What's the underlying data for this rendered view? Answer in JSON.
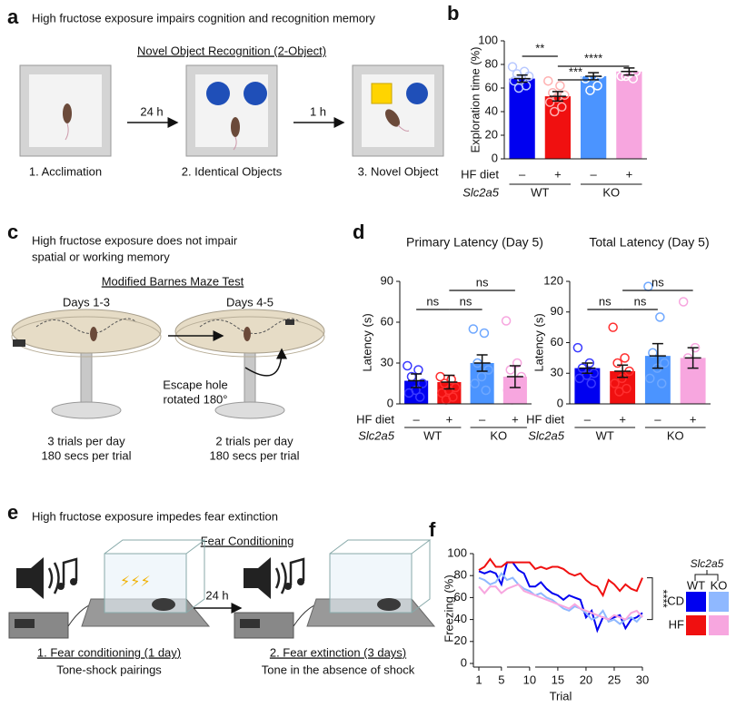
{
  "panels": {
    "a": {
      "letter": "a",
      "title": "High fructose exposure impairs cognition and recognition memory",
      "test": "Novel Object Recognition (2-Object)",
      "intervals": [
        "24 h",
        "1 h"
      ],
      "steps": [
        "1. Acclimation",
        "2. Identical Objects",
        "3. Novel Object"
      ]
    },
    "b": {
      "letter": "b"
    },
    "c": {
      "letter": "c",
      "title": [
        "High fructose exposure does not impair",
        "spatial or working memory"
      ],
      "test": "Modified Barnes Maze Test",
      "days": [
        "Days 1-3",
        "Days 4-5"
      ],
      "rotation": [
        "Escape hole",
        "rotated 180°"
      ],
      "protocol": [
        [
          "3 trials per day",
          "180 secs per trial"
        ],
        [
          "2 trials per day",
          "180 secs per trial"
        ]
      ]
    },
    "d": {
      "letter": "d"
    },
    "e": {
      "letter": "e",
      "title": "High fructose exposure impedes fear extinction",
      "test": "Fear Conditioning",
      "interval": "24 h",
      "steps": [
        [
          "1. Fear conditioning (1 day)",
          "Tone-shock pairings"
        ],
        [
          "2. Fear extinction (3 days)",
          "Tone in the absence of shock"
        ]
      ]
    },
    "f": {
      "letter": "f"
    }
  },
  "chart_data": [
    {
      "type": "bar",
      "ylabel": "Exploration time (%)",
      "row_label": "HF diet",
      "group_label": "Slc2a5",
      "groups": [
        "WT",
        "KO"
      ],
      "categories": [
        "–",
        "+",
        "–",
        "+"
      ],
      "values": [
        68,
        53,
        70,
        74
      ],
      "errors": [
        3,
        4,
        3,
        3
      ],
      "points": [
        [
          78,
          74,
          72,
          70,
          68,
          66,
          62,
          60
        ],
        [
          66,
          62,
          56,
          54,
          52,
          48,
          44,
          40
        ],
        [
          80,
          78,
          74,
          72,
          70,
          68,
          62,
          58
        ],
        [
          84,
          80,
          76,
          74,
          72,
          70,
          68,
          70
        ]
      ],
      "colors": [
        "#0000f0",
        "#f01010",
        "#4b94ff",
        "#f7a6df"
      ],
      "point_colors": [
        "#b8c8ff",
        "#ffb0b0",
        "#ffffff",
        "#ffffff"
      ],
      "ylim": [
        0,
        100
      ],
      "yticks": [
        0,
        20,
        40,
        60,
        80,
        100
      ],
      "annotations": [
        "**",
        "***",
        "****"
      ]
    },
    {
      "type": "bar",
      "title": "Primary Latency (Day 5)",
      "ylabel": "Latency (s)",
      "row_label": "HF diet",
      "group_label": "Slc2a5",
      "groups": [
        "WT",
        "KO"
      ],
      "categories": [
        "–",
        "+",
        "–",
        "+"
      ],
      "values": [
        17,
        16,
        30,
        20
      ],
      "errors": [
        5,
        5,
        6,
        8
      ],
      "points": [
        [
          28,
          25,
          20,
          15,
          10,
          8,
          5
        ],
        [
          20,
          18,
          15,
          12,
          10,
          8,
          5,
          3
        ],
        [
          55,
          52,
          30,
          25,
          20,
          15,
          10
        ],
        [
          61,
          30,
          25,
          20,
          15,
          10,
          5,
          3
        ]
      ],
      "colors": [
        "#0000f0",
        "#f01010",
        "#4b94ff",
        "#f7a6df"
      ],
      "point_colors": [
        "#3a3aff",
        "#ff3030",
        "#6fa8ff",
        "#f7a6df"
      ],
      "ylim": [
        0,
        90
      ],
      "yticks": [
        0,
        30,
        60,
        90
      ],
      "annotations": [
        "ns",
        "ns",
        "ns"
      ]
    },
    {
      "type": "bar",
      "title": "Total Latency (Day 5)",
      "ylabel": "Latency (s)",
      "row_label": "HF diet",
      "group_label": "Slc2a5",
      "groups": [
        "WT",
        "KO"
      ],
      "categories": [
        "–",
        "+",
        "–",
        "+"
      ],
      "values": [
        35,
        32,
        47,
        45
      ],
      "errors": [
        5,
        6,
        12,
        10
      ],
      "points": [
        [
          55,
          40,
          35,
          30,
          28,
          25,
          20
        ],
        [
          75,
          45,
          40,
          32,
          25,
          20,
          15,
          12
        ],
        [
          115,
          85,
          50,
          40,
          35,
          25,
          20
        ],
        [
          100,
          55,
          45,
          40,
          35,
          25,
          20
        ]
      ],
      "colors": [
        "#0000f0",
        "#f01010",
        "#4b94ff",
        "#f7a6df"
      ],
      "point_colors": [
        "#3a3aff",
        "#ff3030",
        "#6fa8ff",
        "#f7a6df"
      ],
      "ylim": [
        0,
        120
      ],
      "yticks": [
        0,
        30,
        60,
        90,
        120
      ],
      "annotations": [
        "ns",
        "ns",
        "ns"
      ]
    },
    {
      "type": "line",
      "xlabel": "Trial",
      "ylabel": "Freezing (%)",
      "x": [
        1,
        2,
        3,
        4,
        5,
        6,
        7,
        8,
        9,
        10,
        11,
        12,
        13,
        14,
        15,
        16,
        17,
        18,
        19,
        20,
        21,
        22,
        23,
        24,
        25,
        26,
        27,
        28,
        29,
        30
      ],
      "series": [
        {
          "color": "#0000f0",
          "values": [
            84,
            82,
            84,
            82,
            72,
            92,
            92,
            85,
            82,
            70,
            70,
            74,
            68,
            64,
            62,
            58,
            62,
            60,
            58,
            42,
            48,
            30,
            42,
            40,
            42,
            44,
            32,
            40,
            42,
            46
          ]
        },
        {
          "color": "#8fb8ff",
          "values": [
            78,
            76,
            72,
            74,
            82,
            76,
            78,
            72,
            68,
            66,
            62,
            64,
            60,
            58,
            54,
            50,
            48,
            52,
            50,
            46,
            40,
            42,
            48,
            38,
            40,
            36,
            40,
            42,
            38,
            44
          ]
        },
        {
          "color": "#f01010",
          "values": [
            85,
            88,
            95,
            88,
            88,
            92,
            92,
            92,
            92,
            92,
            86,
            88,
            86,
            88,
            88,
            86,
            82,
            80,
            82,
            76,
            72,
            70,
            62,
            76,
            72,
            66,
            72,
            68,
            66,
            78
          ]
        },
        {
          "color": "#f7a6df",
          "values": [
            70,
            64,
            70,
            70,
            64,
            68,
            70,
            72,
            66,
            64,
            62,
            60,
            58,
            56,
            54,
            52,
            50,
            54,
            50,
            48,
            46,
            44,
            42,
            40,
            44,
            42,
            40,
            46,
            48,
            42
          ]
        }
      ],
      "xlim": [
        1,
        30
      ],
      "xticks": [
        1,
        5,
        10,
        15,
        20,
        25,
        30
      ],
      "axis_breaks": [
        5.5,
        10.5
      ],
      "ylim": [
        0,
        100
      ],
      "yticks": [
        0,
        20,
        40,
        60,
        80,
        100
      ],
      "legend": {
        "title": "Slc2a5",
        "columns": [
          "WT",
          "KO"
        ],
        "rows": [
          "CD",
          "HF"
        ]
      },
      "annotations": [
        "****"
      ]
    }
  ]
}
